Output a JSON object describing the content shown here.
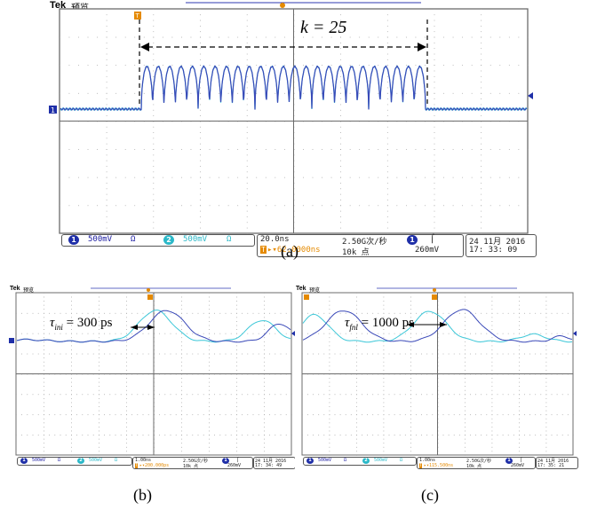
{
  "panel_a": {
    "brand": "Tek",
    "mode": "预览",
    "ch1_chip": "1",
    "ch1_scale": "500mV",
    "ch1_coupling": "Ω",
    "ch2_chip": "2",
    "ch2_scale": "500mV",
    "ch2_coupling": "Ω",
    "timebase": "20.0ns",
    "sample_rate": "2.50G次/秒",
    "record_length": "10k 点",
    "trigger_chip": "1",
    "trigger_slope": "⌠",
    "trigger_level": "260mV",
    "trigger_pos_icon": "T",
    "trigger_pos": "▸▾62.0000ns",
    "date": "24 11月  2016",
    "time": "17: 33: 09",
    "annotation": "k  =  25",
    "caption": "(a)"
  },
  "panel_b": {
    "brand": "Tek",
    "mode": "预览",
    "ch1_chip": "1",
    "ch1_scale": "500mV",
    "ch1_coupling": "Ω",
    "ch2_chip": "2",
    "ch2_scale": "500mV",
    "ch2_coupling": "Ω",
    "timebase": "1.00ns",
    "sample_rate": "2.50G次/秒",
    "record_length": "10k 点",
    "trigger_chip": "1",
    "trigger_slope": "⌠",
    "trigger_level": "260mV",
    "trigger_pos_icon": "T",
    "trigger_pos": "▸▾200.000ps",
    "date": "24 11月  2016",
    "time": "17: 34: 49",
    "annotation_symbol": "τ",
    "annotation_sub": "ini",
    "annotation_value": " = 300 ps",
    "caption": "(b)"
  },
  "panel_c": {
    "brand": "Tek",
    "mode": "预览",
    "ch1_chip": "1",
    "ch1_scale": "500mV",
    "ch1_coupling": "Ω",
    "ch2_chip": "2",
    "ch2_scale": "500mV",
    "ch2_coupling": "Ω",
    "timebase": "1.00ns",
    "sample_rate": "2.50G次/秒",
    "record_length": "10k 点",
    "trigger_chip": "1",
    "trigger_slope": "⌠",
    "trigger_level": "260mV",
    "trigger_pos_icon": "T",
    "trigger_pos": "▸▾115.500ns",
    "date": "24 11月  2016",
    "time": "17: 35: 21",
    "annotation_symbol": "τ",
    "annotation_sub": "fnl",
    "annotation_value": " = 1000 ps",
    "caption": "(c)"
  },
  "colors": {
    "grid_border": "#6b6b6b",
    "grid_dot": "#9a9a9a",
    "ch1_trace": "#3a49b8",
    "ch2_trace": "#3cc7d8",
    "ch1_chip": "#1f2fa8",
    "ch2_chip": "#2bb8c8",
    "trigger_marker": "#e58a00",
    "status_text": "#1a1aa0"
  },
  "icons": {
    "trigger_marker": "trigger-position-icon",
    "ground_marker": "channel-ground-icon",
    "trigger_level": "trigger-level-arrow-icon"
  }
}
